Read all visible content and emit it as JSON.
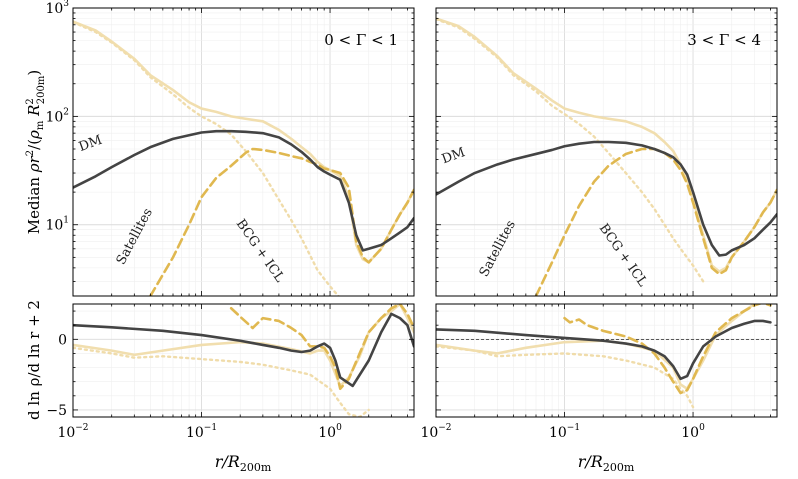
{
  "figure": {
    "ylabel_top": "Median ρr²/(ρm R²200m)",
    "ylabel_bottom": "d ln ρ/d ln r + 2",
    "xlabel": "r/R200m"
  },
  "style": {
    "dm": "#444444",
    "total": "#f0dcaa",
    "satellites": "#e0b850",
    "bcg": "#f0dcaa",
    "grid_major": "#dcdcdc",
    "grid_minor": "#efefef"
  },
  "chart_data": [
    {
      "type": "line",
      "panel": "top-left",
      "title": "0 < Γ < 1",
      "xscale": "log",
      "yscale": "log",
      "xlim": [
        0.01,
        4.5
      ],
      "ylim": [
        2.2,
        1000
      ],
      "ytick_labels": [
        "10^1",
        "10^2",
        "10^3"
      ],
      "annotations": [
        {
          "text": "DM",
          "x": 0.014,
          "y": 52,
          "rotate": -20
        },
        {
          "text": "Satellites",
          "x": 0.032,
          "y": 7.5,
          "rotate": -62
        },
        {
          "text": "BCG + ICL",
          "x": 0.27,
          "y": 5.5,
          "rotate": 55
        }
      ],
      "series": [
        {
          "name": "DM",
          "x": [
            0.01,
            0.015,
            0.02,
            0.03,
            0.04,
            0.06,
            0.08,
            0.1,
            0.13,
            0.17,
            0.22,
            0.3,
            0.4,
            0.5,
            0.6,
            0.7,
            0.8,
            0.9,
            1.0,
            1.2,
            1.4,
            1.6,
            1.8,
            2.0,
            2.5,
            3.0,
            3.5,
            4.0,
            4.5
          ],
          "y": [
            22,
            28,
            34,
            44,
            52,
            62,
            67,
            71,
            73,
            73,
            72,
            70,
            64,
            55,
            47,
            40,
            34,
            31,
            29,
            26,
            16,
            8,
            5.8,
            6.0,
            6.5,
            7.5,
            8.5,
            9.5,
            11.5
          ]
        },
        {
          "name": "Total",
          "x": [
            0.01,
            0.015,
            0.02,
            0.03,
            0.04,
            0.06,
            0.08,
            0.1,
            0.13,
            0.17,
            0.22,
            0.3,
            0.4,
            0.5,
            0.6,
            0.7,
            0.8,
            0.9,
            1.0,
            1.2,
            1.4,
            1.6,
            1.8,
            2.0,
            2.5,
            3.0,
            3.5,
            4.0,
            4.5
          ],
          "y": [
            750,
            620,
            490,
            340,
            240,
            175,
            135,
            118,
            110,
            100,
            95,
            90,
            75,
            62,
            52,
            45,
            38,
            34,
            32,
            28,
            18,
            6.5,
            4.8,
            4.5,
            6.0,
            9.0,
            12.5,
            16,
            21
          ]
        },
        {
          "name": "Satellites",
          "x": [
            0.04,
            0.06,
            0.08,
            0.1,
            0.13,
            0.17,
            0.22,
            0.25,
            0.3,
            0.4,
            0.5,
            0.6,
            0.7,
            0.8,
            0.9,
            1.0,
            1.2,
            1.4,
            1.6,
            1.8,
            2.0,
            2.5,
            3.0,
            3.5,
            4.0,
            4.5
          ],
          "y": [
            2.2,
            5,
            10,
            18,
            27,
            35,
            46,
            50,
            49,
            46,
            43,
            41,
            38,
            36,
            33,
            32,
            30,
            22,
            7.0,
            5.0,
            4.5,
            6.0,
            9.0,
            12.5,
            16,
            21
          ]
        },
        {
          "name": "BCG + ICL",
          "x": [
            0.01,
            0.015,
            0.02,
            0.03,
            0.04,
            0.06,
            0.08,
            0.1,
            0.13,
            0.17,
            0.22,
            0.3,
            0.4,
            0.5,
            0.6,
            0.7,
            0.8,
            1.0,
            1.2
          ],
          "y": [
            740,
            600,
            480,
            330,
            230,
            160,
            120,
            100,
            85,
            68,
            48,
            30,
            17,
            11,
            7.5,
            5.2,
            3.8,
            2.7,
            2.1
          ]
        }
      ]
    },
    {
      "type": "line",
      "panel": "top-right",
      "title": "3 < Γ < 4",
      "xscale": "log",
      "yscale": "log",
      "xlim": [
        0.01,
        4.5
      ],
      "ylim": [
        2.2,
        1000
      ],
      "annotations": [
        {
          "text": "DM",
          "x": 0.014,
          "y": 40,
          "rotate": -20
        },
        {
          "text": "Satellites",
          "x": 0.032,
          "y": 5.8,
          "rotate": -62
        },
        {
          "text": "BCG + ICL",
          "x": 0.27,
          "y": 5.0,
          "rotate": 55
        }
      ],
      "series": [
        {
          "name": "DM",
          "x": [
            0.01,
            0.015,
            0.02,
            0.03,
            0.04,
            0.06,
            0.08,
            0.1,
            0.13,
            0.17,
            0.22,
            0.3,
            0.4,
            0.5,
            0.6,
            0.7,
            0.8,
            0.9,
            1.0,
            1.2,
            1.4,
            1.6,
            1.8,
            2.0,
            2.5,
            3.0,
            3.5,
            4.0,
            4.5
          ],
          "y": [
            19,
            25,
            30,
            36,
            40,
            45,
            49,
            53,
            56,
            58,
            58,
            57,
            54,
            50,
            46,
            42,
            36,
            29,
            20,
            10,
            6.5,
            5.2,
            5.3,
            5.8,
            6.5,
            7.5,
            9.0,
            10.5,
            12.5
          ]
        },
        {
          "name": "Total",
          "x": [
            0.01,
            0.015,
            0.02,
            0.03,
            0.04,
            0.06,
            0.08,
            0.1,
            0.13,
            0.17,
            0.22,
            0.3,
            0.4,
            0.5,
            0.6,
            0.7,
            0.8,
            0.9,
            1.0,
            1.2,
            1.4,
            1.6,
            1.8,
            2.0,
            2.5,
            3.0,
            3.5,
            4.0,
            4.5
          ],
          "y": [
            800,
            680,
            540,
            360,
            250,
            180,
            140,
            118,
            108,
            100,
            95,
            90,
            80,
            70,
            58,
            48,
            36,
            26,
            17,
            8.0,
            4.2,
            3.7,
            4.0,
            5.0,
            7.0,
            9.5,
            13,
            16,
            21
          ]
        },
        {
          "name": "Satellites",
          "x": [
            0.06,
            0.08,
            0.1,
            0.13,
            0.17,
            0.22,
            0.3,
            0.4,
            0.5,
            0.6,
            0.7,
            0.8,
            0.9,
            1.0,
            1.2,
            1.4,
            1.6,
            1.8,
            2.0,
            2.5,
            3.0,
            3.5,
            4.0,
            4.5
          ],
          "y": [
            2.2,
            4.5,
            8,
            15,
            25,
            35,
            45,
            50,
            50,
            46,
            40,
            32,
            24,
            16,
            7.5,
            4.0,
            3.5,
            3.8,
            5.0,
            7.0,
            9.5,
            13,
            16,
            21
          ]
        },
        {
          "name": "BCG + ICL",
          "x": [
            0.01,
            0.015,
            0.02,
            0.03,
            0.04,
            0.06,
            0.08,
            0.1,
            0.13,
            0.17,
            0.22,
            0.3,
            0.4,
            0.5,
            0.6,
            0.7,
            0.8,
            1.0,
            1.2
          ],
          "y": [
            790,
            660,
            520,
            350,
            240,
            170,
            125,
            105,
            85,
            65,
            46,
            30,
            20,
            14,
            10,
            7.5,
            6.0,
            4.2,
            3.0
          ]
        }
      ]
    },
    {
      "type": "line",
      "panel": "bottom-left",
      "xscale": "log",
      "yscale": "linear",
      "xlim": [
        0.01,
        4.5
      ],
      "ylim": [
        -5.5,
        2.5
      ],
      "yticks": [
        -5,
        0
      ],
      "ytick_labels": [
        "−5",
        "0"
      ],
      "xtick_labels": [
        "10^{-2}",
        "10^{-1}",
        "10^{0}"
      ],
      "zero_line": false,
      "series": [
        {
          "name": "DM",
          "x": [
            0.01,
            0.02,
            0.05,
            0.1,
            0.2,
            0.3,
            0.4,
            0.5,
            0.6,
            0.7,
            0.8,
            0.9,
            1.0,
            1.1,
            1.2,
            1.5,
            2.0,
            2.5,
            3.0,
            3.5,
            4.0,
            4.5
          ],
          "y": [
            1.0,
            0.85,
            0.6,
            0.3,
            -0.1,
            -0.4,
            -0.6,
            -0.8,
            -0.9,
            -0.8,
            -0.5,
            -0.3,
            -0.6,
            -1.5,
            -2.7,
            -3.3,
            -1.5,
            0.5,
            1.8,
            1.5,
            1.0,
            -0.5
          ]
        },
        {
          "name": "Total",
          "x": [
            0.01,
            0.02,
            0.03,
            0.05,
            0.1,
            0.2,
            0.3,
            0.5,
            0.7,
            0.8,
            0.9,
            1.0,
            1.2,
            1.4,
            1.7,
            2.0,
            2.5,
            3.0,
            3.5,
            4.0,
            4.5
          ],
          "y": [
            -0.4,
            -0.8,
            -1.1,
            -0.8,
            -0.4,
            -0.2,
            -0.3,
            -0.7,
            -1.0,
            -0.8,
            -0.8,
            -1.5,
            -3.3,
            -2.7,
            -1.2,
            0.5,
            1.5,
            2.0,
            2.5,
            1.5,
            0.5
          ]
        },
        {
          "name": "Satellites",
          "x": [
            0.17,
            0.2,
            0.25,
            0.3,
            0.4,
            0.5,
            0.6,
            0.7,
            0.8,
            0.9,
            1.0,
            1.1,
            1.2,
            1.4,
            1.7,
            2.0,
            2.5,
            3.0,
            3.5,
            4.0,
            4.5
          ],
          "y": [
            2.2,
            1.6,
            0.8,
            1.5,
            1.3,
            0.8,
            0.3,
            -0.5,
            -0.5,
            -0.6,
            -1.2,
            -2.0,
            -3.5,
            -2.8,
            -1.0,
            0.5,
            1.5,
            2.2,
            2.5,
            1.8,
            0.8
          ]
        },
        {
          "name": "BCG + ICL",
          "x": [
            0.01,
            0.02,
            0.03,
            0.05,
            0.1,
            0.2,
            0.3,
            0.5,
            0.7,
            1.0,
            1.2,
            1.4,
            1.7,
            2.0
          ],
          "y": [
            -0.6,
            -1.0,
            -1.3,
            -1.2,
            -1.4,
            -1.6,
            -1.8,
            -2.2,
            -2.5,
            -3.5,
            -4.5,
            -5.3,
            -5.5,
            -5.0
          ]
        }
      ]
    },
    {
      "type": "line",
      "panel": "bottom-right",
      "xscale": "log",
      "yscale": "linear",
      "xlim": [
        0.01,
        4.5
      ],
      "ylim": [
        -5.5,
        2.5
      ],
      "xtick_labels": [
        "10^{-2}",
        "10^{-1}",
        "10^{0}"
      ],
      "zero_line": true,
      "series": [
        {
          "name": "DM",
          "x": [
            0.01,
            0.02,
            0.05,
            0.1,
            0.2,
            0.3,
            0.4,
            0.5,
            0.6,
            0.7,
            0.8,
            0.9,
            1.0,
            1.2,
            1.5,
            2.0,
            2.5,
            3.0,
            3.5,
            4.0
          ],
          "y": [
            0.7,
            0.6,
            0.3,
            0.1,
            -0.1,
            -0.3,
            -0.5,
            -0.8,
            -1.2,
            -1.9,
            -2.8,
            -2.6,
            -1.7,
            -0.5,
            0.2,
            0.8,
            1.1,
            1.3,
            1.3,
            1.2
          ]
        },
        {
          "name": "Total",
          "x": [
            0.01,
            0.02,
            0.03,
            0.05,
            0.1,
            0.2,
            0.3,
            0.5,
            0.7,
            0.8,
            0.9,
            1.0,
            1.2,
            1.5,
            2.0,
            2.5,
            3.0,
            3.5,
            4.0
          ],
          "y": [
            -0.4,
            -0.8,
            -1.0,
            -0.6,
            -0.2,
            -0.1,
            -0.3,
            -0.8,
            -2.0,
            -3.2,
            -3.5,
            -2.8,
            -1.5,
            0.3,
            1.3,
            2.0,
            2.5,
            2.7,
            2.6
          ]
        },
        {
          "name": "Satellites",
          "x": [
            0.1,
            0.11,
            0.13,
            0.15,
            0.2,
            0.3,
            0.4,
            0.5,
            0.6,
            0.7,
            0.8,
            0.9,
            1.0,
            1.2,
            1.5,
            2.0,
            2.5,
            3.0,
            3.5,
            4.0
          ],
          "y": [
            1.5,
            1.2,
            1.4,
            1.0,
            0.6,
            0.2,
            -0.3,
            -1.0,
            -2.0,
            -3.0,
            -3.8,
            -3.6,
            -2.8,
            -1.2,
            0.5,
            1.5,
            2.0,
            2.4,
            2.6,
            2.4
          ]
        },
        {
          "name": "BCG + ICL",
          "x": [
            0.01,
            0.02,
            0.03,
            0.05,
            0.1,
            0.2,
            0.3,
            0.5,
            0.7,
            0.8,
            0.9,
            1.0
          ],
          "y": [
            -0.5,
            -0.8,
            -1.2,
            -1.1,
            -1.0,
            -1.2,
            -1.5,
            -2.0,
            -2.8,
            -3.5,
            -4.0,
            -4.8
          ]
        }
      ]
    }
  ]
}
